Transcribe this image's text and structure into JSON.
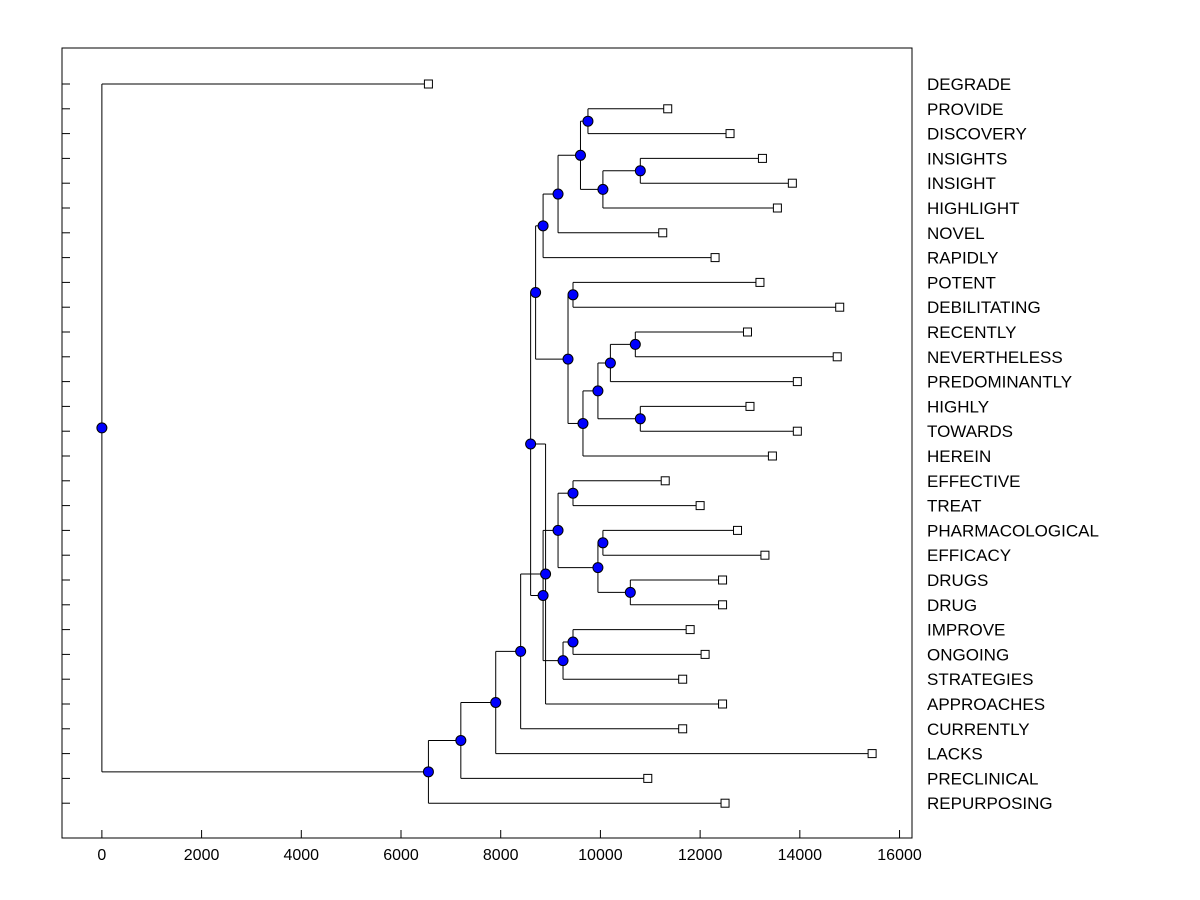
{
  "chart_data": {
    "type": "dendrogram",
    "title": "",
    "xlabel": "",
    "ylabel": "",
    "xlim": [
      -800,
      16250
    ],
    "xticks": [
      0,
      2000,
      4000,
      6000,
      8000,
      10000,
      12000,
      14000,
      16000
    ],
    "xtick_labels": [
      "0",
      "2000",
      "4000",
      "6000",
      "8000",
      "10000",
      "12000",
      "14000",
      "16000"
    ],
    "colors": {
      "node": "#0000ff",
      "line": "#000000",
      "leaf": "#ffffff"
    },
    "leaves": [
      {
        "name": "DEGRADE",
        "x": 6550
      },
      {
        "name": "PROVIDE",
        "x": 11350
      },
      {
        "name": "DISCOVERY",
        "x": 12600
      },
      {
        "name": "INSIGHTS",
        "x": 13250
      },
      {
        "name": "INSIGHT",
        "x": 13850
      },
      {
        "name": "HIGHLIGHT",
        "x": 13550
      },
      {
        "name": "NOVEL",
        "x": 11250
      },
      {
        "name": "RAPIDLY",
        "x": 12300
      },
      {
        "name": "POTENT",
        "x": 13200
      },
      {
        "name": "DEBILITATING",
        "x": 14800
      },
      {
        "name": "RECENTLY",
        "x": 12950
      },
      {
        "name": "NEVERTHELESS",
        "x": 14750
      },
      {
        "name": "PREDOMINANTLY",
        "x": 13950
      },
      {
        "name": "HIGHLY",
        "x": 13000
      },
      {
        "name": "TOWARDS",
        "x": 13950
      },
      {
        "name": "HEREIN",
        "x": 13450
      },
      {
        "name": "EFFECTIVE",
        "x": 11300
      },
      {
        "name": "TREAT",
        "x": 12000
      },
      {
        "name": "PHARMACOLOGICAL",
        "x": 12750
      },
      {
        "name": "EFFICACY",
        "x": 13300
      },
      {
        "name": "DRUGS",
        "x": 12450
      },
      {
        "name": "DRUG",
        "x": 12450
      },
      {
        "name": "IMPROVE",
        "x": 11800
      },
      {
        "name": "ONGOING",
        "x": 12100
      },
      {
        "name": "STRATEGIES",
        "x": 11650
      },
      {
        "name": "APPROACHES",
        "x": 12450
      },
      {
        "name": "CURRENTLY",
        "x": 11650
      },
      {
        "name": "LACKS",
        "x": 15450
      },
      {
        "name": "PRECLINICAL",
        "x": 10950
      },
      {
        "name": "REPURPOSING",
        "x": 12500
      }
    ],
    "merges": [
      {
        "id": "n1",
        "x": 9750,
        "children": [
          "PROVIDE",
          "DISCOVERY"
        ]
      },
      {
        "id": "n2",
        "x": 10800,
        "children": [
          "INSIGHTS",
          "INSIGHT"
        ]
      },
      {
        "id": "n3",
        "x": 10050,
        "children": [
          "n2",
          "HIGHLIGHT"
        ]
      },
      {
        "id": "n4",
        "x": 9600,
        "children": [
          "n1",
          "n3"
        ]
      },
      {
        "id": "n5",
        "x": 9150,
        "children": [
          "n4",
          "NOVEL"
        ]
      },
      {
        "id": "n6",
        "x": 8850,
        "children": [
          "n5",
          "RAPIDLY"
        ]
      },
      {
        "id": "n7",
        "x": 9450,
        "children": [
          "POTENT",
          "DEBILITATING"
        ]
      },
      {
        "id": "n8",
        "x": 10700,
        "children": [
          "RECENTLY",
          "NEVERTHELESS"
        ]
      },
      {
        "id": "n9",
        "x": 10200,
        "children": [
          "n8",
          "PREDOMINANTLY"
        ]
      },
      {
        "id": "n10",
        "x": 10800,
        "children": [
          "HIGHLY",
          "TOWARDS"
        ]
      },
      {
        "id": "n11",
        "x": 9950,
        "children": [
          "n9",
          "n10"
        ]
      },
      {
        "id": "n12",
        "x": 9650,
        "children": [
          "n11",
          "HEREIN"
        ]
      },
      {
        "id": "n13",
        "x": 9350,
        "children": [
          "n7",
          "n12"
        ]
      },
      {
        "id": "n14",
        "x": 8700,
        "children": [
          "n6",
          "n13"
        ]
      },
      {
        "id": "n15",
        "x": 9450,
        "children": [
          "EFFECTIVE",
          "TREAT"
        ]
      },
      {
        "id": "n16",
        "x": 10050,
        "children": [
          "PHARMACOLOGICAL",
          "EFFICACY"
        ]
      },
      {
        "id": "n17",
        "x": 10600,
        "children": [
          "DRUGS",
          "DRUG"
        ]
      },
      {
        "id": "n18",
        "x": 9950,
        "children": [
          "n16",
          "n17"
        ]
      },
      {
        "id": "n19",
        "x": 9150,
        "children": [
          "n15",
          "n18"
        ]
      },
      {
        "id": "n20",
        "x": 9450,
        "children": [
          "IMPROVE",
          "ONGOING"
        ]
      },
      {
        "id": "n21",
        "x": 9250,
        "children": [
          "n20",
          "STRATEGIES"
        ]
      },
      {
        "id": "n22",
        "x": 8850,
        "children": [
          "n19",
          "n21"
        ]
      },
      {
        "id": "n23",
        "x": 8600,
        "children": [
          "n14",
          "n22"
        ]
      },
      {
        "id": "n24",
        "x": 8900,
        "children": [
          "n23",
          "APPROACHES"
        ]
      },
      {
        "id": "n25",
        "x": 8400,
        "children": [
          "n24",
          "CURRENTLY"
        ]
      },
      {
        "id": "n26",
        "x": 7900,
        "children": [
          "n25",
          "LACKS"
        ]
      },
      {
        "id": "n27",
        "x": 7200,
        "children": [
          "n26",
          "PRECLINICAL"
        ]
      },
      {
        "id": "n28",
        "x": 6550,
        "children": [
          "n27",
          "REPURPOSING"
        ]
      },
      {
        "id": "root",
        "x": 0,
        "children": [
          "DEGRADE",
          "n28"
        ]
      }
    ]
  }
}
